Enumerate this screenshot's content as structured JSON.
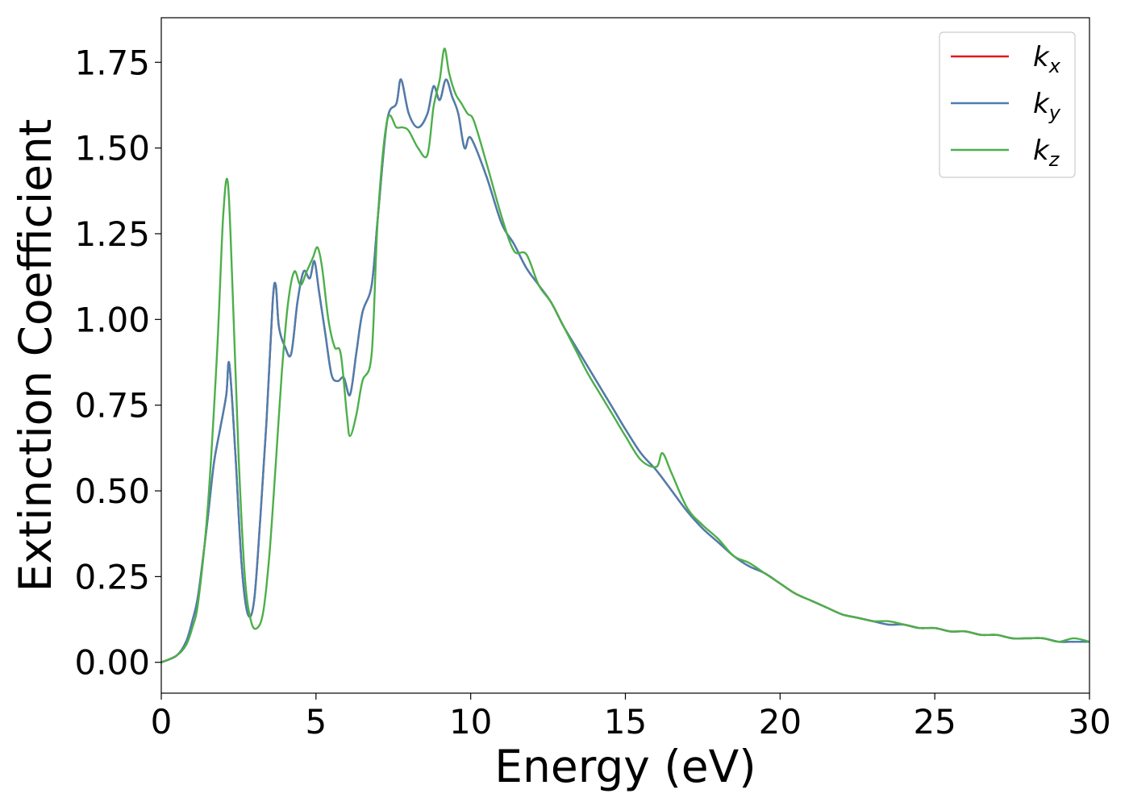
{
  "chart_data": {
    "type": "line",
    "xlabel": "Energy (eV)",
    "ylabel": "Extinction Coefficient",
    "xlim": [
      0,
      30
    ],
    "ylim": [
      -0.09,
      1.88
    ],
    "xticks": [
      "0",
      "5",
      "10",
      "15",
      "20",
      "25",
      "30"
    ],
    "xtick_values": [
      0,
      5,
      10,
      15,
      20,
      25,
      30
    ],
    "yticks": [
      "0.00",
      "0.25",
      "0.50",
      "0.75",
      "1.00",
      "1.25",
      "1.50",
      "1.75"
    ],
    "ytick_values": [
      0,
      0.25,
      0.5,
      0.75,
      1.0,
      1.25,
      1.5,
      1.75
    ],
    "grid": false,
    "legend_position": "top-right",
    "series": [
      {
        "name": "k_x",
        "label_base": "k",
        "label_sub": "x",
        "color": "#e41a1c",
        "x": [
          0,
          0.5,
          0.8,
          1.0,
          1.2,
          1.5,
          1.7,
          1.9,
          2.1,
          2.2,
          2.4,
          2.6,
          2.8,
          3.0,
          3.2,
          3.4,
          3.6,
          3.7,
          3.8,
          4.0,
          4.2,
          4.4,
          4.6,
          4.8,
          4.95,
          5.1,
          5.3,
          5.5,
          5.7,
          5.9,
          6.1,
          6.3,
          6.5,
          6.8,
          7.0,
          7.3,
          7.6,
          7.75,
          8.0,
          8.3,
          8.6,
          8.8,
          9.0,
          9.2,
          9.4,
          9.6,
          9.8,
          10.0,
          10.5,
          11.0,
          11.4,
          11.8,
          12.2,
          12.6,
          13.0,
          13.4,
          13.8,
          14.2,
          14.6,
          15.0,
          15.5,
          16.0,
          16.5,
          17.0,
          17.5,
          18.0,
          18.5,
          19.0,
          19.5,
          20.0,
          20.5,
          21.0,
          21.5,
          22.0,
          22.5,
          23.0,
          23.5,
          24.0,
          24.5,
          25.0,
          25.5,
          26.0,
          26.5,
          27.0,
          27.5,
          28.0,
          28.5,
          29.0,
          29.5,
          30.0
        ],
        "y": [
          0.0,
          0.02,
          0.06,
          0.12,
          0.2,
          0.42,
          0.58,
          0.68,
          0.78,
          0.87,
          0.6,
          0.28,
          0.14,
          0.18,
          0.42,
          0.7,
          1.05,
          1.1,
          0.98,
          0.92,
          0.9,
          1.05,
          1.14,
          1.12,
          1.17,
          1.08,
          0.96,
          0.84,
          0.82,
          0.83,
          0.78,
          0.9,
          1.02,
          1.1,
          1.3,
          1.58,
          1.63,
          1.7,
          1.6,
          1.56,
          1.6,
          1.68,
          1.64,
          1.7,
          1.65,
          1.6,
          1.5,
          1.53,
          1.42,
          1.28,
          1.22,
          1.15,
          1.1,
          1.05,
          0.98,
          0.92,
          0.86,
          0.8,
          0.74,
          0.68,
          0.61,
          0.56,
          0.5,
          0.44,
          0.39,
          0.35,
          0.31,
          0.28,
          0.26,
          0.23,
          0.2,
          0.18,
          0.16,
          0.14,
          0.13,
          0.12,
          0.11,
          0.11,
          0.1,
          0.1,
          0.09,
          0.09,
          0.08,
          0.08,
          0.07,
          0.07,
          0.07,
          0.06,
          0.06,
          0.06
        ]
      },
      {
        "name": "k_y",
        "label_base": "k",
        "label_sub": "y",
        "color": "#4a7fb0",
        "x": [
          0,
          0.5,
          0.8,
          1.0,
          1.2,
          1.5,
          1.7,
          1.9,
          2.1,
          2.2,
          2.4,
          2.6,
          2.8,
          3.0,
          3.2,
          3.4,
          3.6,
          3.7,
          3.8,
          4.0,
          4.2,
          4.4,
          4.6,
          4.8,
          4.95,
          5.1,
          5.3,
          5.5,
          5.7,
          5.9,
          6.1,
          6.3,
          6.5,
          6.8,
          7.0,
          7.3,
          7.6,
          7.75,
          8.0,
          8.3,
          8.6,
          8.8,
          9.0,
          9.2,
          9.4,
          9.6,
          9.8,
          10.0,
          10.5,
          11.0,
          11.4,
          11.8,
          12.2,
          12.6,
          13.0,
          13.4,
          13.8,
          14.2,
          14.6,
          15.0,
          15.5,
          16.0,
          16.5,
          17.0,
          17.5,
          18.0,
          18.5,
          19.0,
          19.5,
          20.0,
          20.5,
          21.0,
          21.5,
          22.0,
          22.5,
          23.0,
          23.5,
          24.0,
          24.5,
          25.0,
          25.5,
          26.0,
          26.5,
          27.0,
          27.5,
          28.0,
          28.5,
          29.0,
          29.5,
          30.0
        ],
        "y": [
          0.0,
          0.02,
          0.06,
          0.12,
          0.2,
          0.42,
          0.58,
          0.68,
          0.78,
          0.87,
          0.6,
          0.28,
          0.14,
          0.18,
          0.42,
          0.7,
          1.05,
          1.1,
          0.98,
          0.92,
          0.9,
          1.05,
          1.14,
          1.12,
          1.17,
          1.08,
          0.96,
          0.84,
          0.82,
          0.83,
          0.78,
          0.9,
          1.02,
          1.1,
          1.3,
          1.58,
          1.63,
          1.7,
          1.6,
          1.56,
          1.6,
          1.68,
          1.64,
          1.7,
          1.65,
          1.6,
          1.5,
          1.53,
          1.42,
          1.28,
          1.22,
          1.15,
          1.1,
          1.05,
          0.98,
          0.92,
          0.86,
          0.8,
          0.74,
          0.68,
          0.61,
          0.56,
          0.5,
          0.44,
          0.39,
          0.35,
          0.31,
          0.28,
          0.26,
          0.23,
          0.2,
          0.18,
          0.16,
          0.14,
          0.13,
          0.12,
          0.11,
          0.11,
          0.1,
          0.1,
          0.09,
          0.09,
          0.08,
          0.08,
          0.07,
          0.07,
          0.07,
          0.06,
          0.06,
          0.06
        ]
      },
      {
        "name": "k_z",
        "label_base": "k",
        "label_sub": "z",
        "color": "#4daf4a",
        "x": [
          0,
          0.5,
          0.8,
          1.0,
          1.2,
          1.5,
          1.8,
          2.0,
          2.15,
          2.3,
          2.5,
          2.7,
          2.9,
          3.1,
          3.3,
          3.5,
          3.7,
          3.9,
          4.1,
          4.3,
          4.5,
          4.7,
          4.9,
          5.05,
          5.2,
          5.4,
          5.6,
          5.8,
          6.0,
          6.1,
          6.3,
          6.5,
          6.8,
          7.0,
          7.3,
          7.6,
          7.8,
          8.0,
          8.3,
          8.6,
          8.8,
          9.0,
          9.15,
          9.3,
          9.5,
          9.7,
          9.9,
          10.1,
          10.5,
          11.0,
          11.4,
          11.8,
          12.2,
          12.6,
          13.0,
          13.4,
          13.8,
          14.2,
          14.6,
          15.0,
          15.5,
          16.0,
          16.2,
          16.5,
          17.0,
          17.5,
          18.0,
          18.5,
          19.0,
          19.5,
          20.0,
          20.5,
          21.0,
          21.5,
          22.0,
          22.5,
          23.0,
          23.5,
          24.0,
          24.5,
          25.0,
          25.5,
          26.0,
          26.5,
          27.0,
          27.5,
          28.0,
          28.5,
          29.0,
          29.5,
          30.0
        ],
        "y": [
          0.0,
          0.02,
          0.05,
          0.1,
          0.18,
          0.45,
          0.9,
          1.3,
          1.4,
          1.1,
          0.6,
          0.25,
          0.12,
          0.1,
          0.15,
          0.32,
          0.58,
          0.85,
          1.05,
          1.14,
          1.1,
          1.14,
          1.18,
          1.21,
          1.15,
          1.0,
          0.92,
          0.9,
          0.72,
          0.66,
          0.72,
          0.82,
          0.9,
          1.3,
          1.58,
          1.56,
          1.56,
          1.55,
          1.5,
          1.48,
          1.62,
          1.7,
          1.79,
          1.72,
          1.66,
          1.63,
          1.6,
          1.58,
          1.46,
          1.3,
          1.2,
          1.19,
          1.1,
          1.05,
          0.98,
          0.91,
          0.84,
          0.78,
          0.72,
          0.66,
          0.59,
          0.57,
          0.61,
          0.55,
          0.45,
          0.4,
          0.36,
          0.31,
          0.29,
          0.26,
          0.23,
          0.2,
          0.18,
          0.16,
          0.14,
          0.13,
          0.12,
          0.12,
          0.11,
          0.1,
          0.1,
          0.09,
          0.09,
          0.08,
          0.08,
          0.07,
          0.07,
          0.07,
          0.06,
          0.07,
          0.06
        ]
      }
    ]
  }
}
